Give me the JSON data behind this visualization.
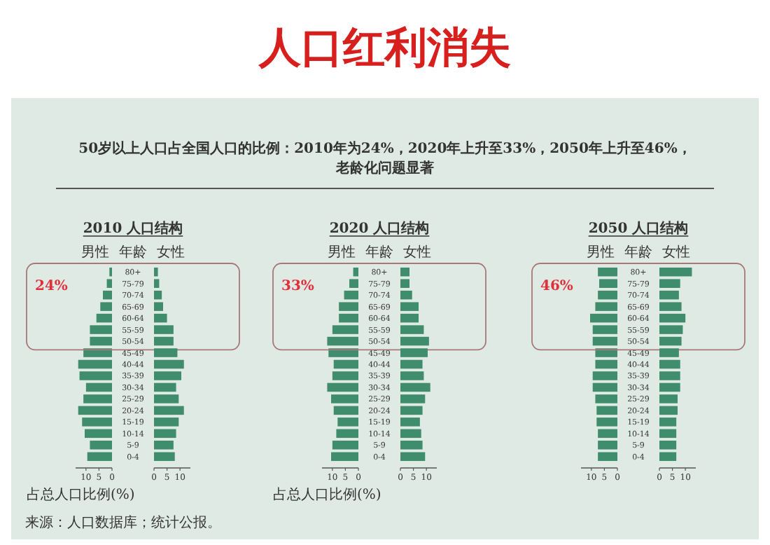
{
  "chart_data": [
    {
      "type": "other",
      "title": "人口红利消失",
      "subtitle": "50岁以上人口占全国人口的比例：2010年为24%，2020年上升至33%，2050年上升至46%，老龄化问题显著",
      "annotations": [
        "来源：人口数据库；统计公报。"
      ]
    },
    {
      "type": "bar",
      "orientation": "horizontal",
      "title": "2010 人口结构",
      "subtitle": "男性",
      "ylabel": "年龄",
      "xlabel": "占总人口比例(%)",
      "annotations": [
        "24%"
      ],
      "color": "#3f8d6c",
      "xlim": [
        14,
        0
      ],
      "xticks": [
        10,
        5,
        0
      ],
      "categories": [
        "80+",
        "75-79",
        "70-74",
        "65-69",
        "60-64",
        "55-59",
        "50-54",
        "45-49",
        "40-44",
        "35-39",
        "30-34",
        "25-29",
        "20-24",
        "15-19",
        "10-14",
        "5-9",
        "0-4"
      ],
      "values": [
        1,
        2,
        3.5,
        4.5,
        6,
        8.5,
        8.5,
        11,
        13,
        12.5,
        10,
        11,
        13,
        11.5,
        10.5,
        8.5,
        9.5
      ]
    },
    {
      "type": "bar",
      "orientation": "horizontal",
      "subtitle": "女性",
      "tick_labels": "x",
      "color": "#3f8d6c",
      "xlim": [
        0,
        14
      ],
      "xticks": [
        0,
        5,
        10
      ],
      "categories": [
        null,
        null,
        null,
        null,
        null,
        null,
        null,
        null,
        null,
        null,
        null,
        null,
        null,
        null,
        null,
        null,
        null
      ],
      "values": [
        1.5,
        2,
        3,
        3.5,
        5,
        7.5,
        7.5,
        9,
        11.5,
        10.5,
        8.5,
        9.5,
        11.5,
        9.5,
        8.5,
        7.5,
        8
      ]
    },
    {
      "type": "bar",
      "orientation": "horizontal",
      "title": "2020 人口结构",
      "subtitle": "男性",
      "ylabel": "年龄",
      "xlabel": "占总人口比例(%)",
      "annotations": [
        "33%"
      ],
      "color": "#3f8d6c",
      "xlim": [
        14,
        0
      ],
      "xticks": [
        10,
        5,
        0
      ],
      "categories": [
        "80+",
        "75-79",
        "70-74",
        "65-69",
        "60-64",
        "55-59",
        "50-54",
        "45-49",
        "40-44",
        "35-39",
        "30-34",
        "25-29",
        "20-24",
        "15-19",
        "10-14",
        "5-9",
        "0-4"
      ],
      "values": [
        2,
        3.5,
        5.5,
        7.5,
        7.5,
        10,
        12,
        11.5,
        9.5,
        10,
        12,
        10.5,
        9.5,
        8,
        8.5,
        10,
        10.5
      ]
    },
    {
      "type": "bar",
      "orientation": "horizontal",
      "subtitle": "女性",
      "tick_labels": "x",
      "color": "#3f8d6c",
      "xlim": [
        0,
        14
      ],
      "xticks": [
        0,
        5,
        10
      ],
      "categories": [
        null,
        null,
        null,
        null,
        null,
        null,
        null,
        null,
        null,
        null,
        null,
        null,
        null,
        null,
        null,
        null,
        null
      ],
      "values": [
        3.5,
        3.5,
        4.5,
        7,
        7,
        9,
        11,
        10.5,
        8.5,
        9,
        11.5,
        9.5,
        8.5,
        7.5,
        8,
        8.5,
        9.5
      ]
    },
    {
      "type": "bar",
      "orientation": "horizontal",
      "title": "2050 人口结构",
      "subtitle": "男性",
      "ylabel": "年龄",
      "annotations": [
        "46%"
      ],
      "color": "#3f8d6c",
      "xlim": [
        14,
        0
      ],
      "xticks": [
        10,
        5,
        0
      ],
      "categories": [
        "80+",
        "75-79",
        "70-74",
        "65-69",
        "60-64",
        "55-59",
        "50-54",
        "45-49",
        "40-44",
        "35-39",
        "30-34",
        "25-29",
        "20-24",
        "15-19",
        "10-14",
        "5-9",
        "0-4"
      ],
      "values": [
        7.5,
        7,
        7.5,
        8.5,
        10.5,
        9.5,
        9.5,
        8.5,
        8.5,
        9.5,
        9.5,
        8.5,
        8,
        8,
        7.5,
        7.5,
        7.5
      ]
    },
    {
      "type": "bar",
      "orientation": "horizontal",
      "subtitle": "女性",
      "tick_labels": "x",
      "color": "#3f8d6c",
      "xlim": [
        0,
        14
      ],
      "xticks": [
        0,
        5,
        10
      ],
      "categories": [
        null,
        null,
        null,
        null,
        null,
        null,
        null,
        null,
        null,
        null,
        null,
        null,
        null,
        null,
        null,
        null,
        null
      ],
      "values": [
        12.5,
        8,
        7.5,
        8.5,
        10,
        9,
        8.5,
        7.5,
        8,
        8,
        8,
        7,
        7,
        6.5,
        6.5,
        6.5,
        6.5
      ]
    }
  ]
}
